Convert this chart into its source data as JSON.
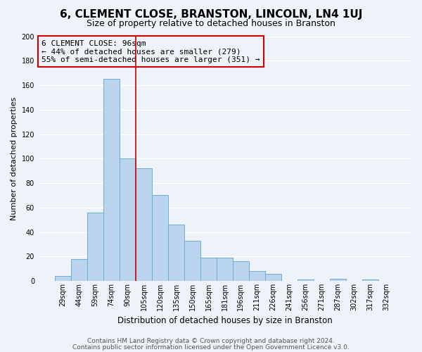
{
  "title": "6, CLEMENT CLOSE, BRANSTON, LINCOLN, LN4 1UJ",
  "subtitle": "Size of property relative to detached houses in Branston",
  "xlabel": "Distribution of detached houses by size in Branston",
  "ylabel": "Number of detached properties",
  "bar_labels": [
    "29sqm",
    "44sqm",
    "59sqm",
    "74sqm",
    "90sqm",
    "105sqm",
    "120sqm",
    "135sqm",
    "150sqm",
    "165sqm",
    "181sqm",
    "196sqm",
    "211sqm",
    "226sqm",
    "241sqm",
    "256sqm",
    "271sqm",
    "287sqm",
    "302sqm",
    "317sqm",
    "332sqm"
  ],
  "bar_values": [
    4,
    18,
    56,
    165,
    100,
    92,
    70,
    46,
    33,
    19,
    19,
    16,
    8,
    6,
    0,
    1,
    0,
    2,
    0,
    1,
    0
  ],
  "bar_color": "#bad4ed",
  "bar_edgecolor": "#6baed6",
  "reference_line_color": "#cc0000",
  "annotation_title": "6 CLEMENT CLOSE: 96sqm",
  "annotation_line1": "← 44% of detached houses are smaller (279)",
  "annotation_line2": "55% of semi-detached houses are larger (351) →",
  "annotation_box_edgecolor": "#cc0000",
  "ylim": [
    0,
    200
  ],
  "yticks": [
    0,
    20,
    40,
    60,
    80,
    100,
    120,
    140,
    160,
    180,
    200
  ],
  "footer1": "Contains HM Land Registry data © Crown copyright and database right 2024.",
  "footer2": "Contains public sector information licensed under the Open Government Licence v3.0.",
  "bg_color": "#eef2f9",
  "grid_color": "#ffffff",
  "title_fontsize": 11,
  "subtitle_fontsize": 9,
  "xlabel_fontsize": 8.5,
  "ylabel_fontsize": 8,
  "tick_fontsize": 7,
  "footer_fontsize": 6.5,
  "annotation_fontsize": 8
}
